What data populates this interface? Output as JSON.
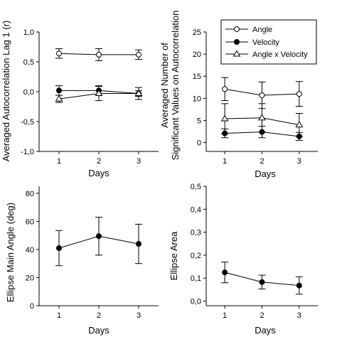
{
  "chart_data": [
    {
      "id": "autocorr",
      "type": "line",
      "xlabel": "Days",
      "ylabel": "Averaged Autocorrelation Lag 1 (r)",
      "x": [
        1,
        2,
        3
      ],
      "xticks": [
        "1",
        "2",
        "3"
      ],
      "xlim": [
        0.5,
        3.5
      ],
      "ylim": [
        -1.0,
        1.0
      ],
      "yticks": [
        -1.0,
        -0.5,
        0.0,
        0.5,
        1.0
      ],
      "ytick_labels": [
        "-1,0",
        "-0,5",
        "0,0",
        "0,5",
        "1,0"
      ],
      "series": [
        {
          "name": "Angle",
          "marker": "open-circle",
          "values": [
            0.64,
            0.62,
            0.62
          ],
          "err": [
            0.08,
            0.1,
            0.08
          ]
        },
        {
          "name": "Velocity",
          "marker": "filled-circle",
          "values": [
            0.02,
            0.02,
            -0.03
          ],
          "err": [
            0.08,
            0.08,
            0.05
          ]
        },
        {
          "name": "Angle x Velocity",
          "marker": "open-triangle",
          "values": [
            -0.12,
            -0.03,
            -0.03
          ],
          "err": [
            0.06,
            0.12,
            0.1
          ]
        }
      ]
    },
    {
      "id": "significant",
      "type": "line",
      "xlabel": "Days",
      "ylabel_lines": [
        "Averaged Number of",
        "Significant Values on Autocorrelation"
      ],
      "x": [
        1,
        2,
        3
      ],
      "xticks": [
        "1",
        "2",
        "3"
      ],
      "xlim": [
        0.5,
        3.5
      ],
      "ylim": [
        -2,
        25
      ],
      "yticks": [
        0,
        5,
        10,
        15,
        20,
        25
      ],
      "ytick_labels": [
        "0",
        "5",
        "10",
        "15",
        "20",
        "25"
      ],
      "legend": {
        "placement": "top-right",
        "entries": [
          "Angle",
          "Velocity",
          "Angle x Velocity"
        ]
      },
      "series": [
        {
          "name": "Angle",
          "marker": "open-circle",
          "values": [
            12.1,
            10.7,
            11.0
          ],
          "err": [
            2.6,
            3.0,
            2.8
          ]
        },
        {
          "name": "Velocity",
          "marker": "filled-circle",
          "values": [
            2.1,
            2.4,
            1.4
          ],
          "err": [
            1.0,
            1.3,
            0.9
          ]
        },
        {
          "name": "Angle x Velocity",
          "marker": "open-triangle",
          "values": [
            5.4,
            5.6,
            4.0
          ],
          "err": [
            3.4,
            3.2,
            2.6
          ]
        }
      ]
    },
    {
      "id": "angle",
      "type": "line",
      "xlabel": "Days",
      "ylabel": "Ellipse Main Angle (deg)",
      "x": [
        1,
        2,
        3
      ],
      "xticks": [
        "1",
        "2",
        "3"
      ],
      "xlim": [
        0.5,
        3.5
      ],
      "ylim": [
        0,
        85
      ],
      "yticks": [
        0,
        20,
        40,
        60,
        80
      ],
      "ytick_labels": [
        "0",
        "20",
        "40",
        "60",
        "80"
      ],
      "series": [
        {
          "marker": "filled-circle",
          "values": [
            41.0,
            49.5,
            44.0
          ],
          "err": [
            12.5,
            13.5,
            14.0
          ]
        }
      ]
    },
    {
      "id": "area",
      "type": "line",
      "xlabel": "Days",
      "ylabel": "Ellipse Area",
      "x": [
        1,
        2,
        3
      ],
      "xticks": [
        "1",
        "2",
        "3"
      ],
      "xlim": [
        0.5,
        3.5
      ],
      "ylim": [
        -0.02,
        0.5
      ],
      "yticks": [
        0.0,
        0.1,
        0.2,
        0.3,
        0.4,
        0.5
      ],
      "ytick_labels": [
        "0,0",
        "0,1",
        "0,2",
        "0,3",
        "0,4",
        "0,5"
      ],
      "series": [
        {
          "marker": "filled-circle",
          "values": [
            0.125,
            0.083,
            0.068
          ],
          "err": [
            0.045,
            0.03,
            0.038
          ]
        }
      ]
    }
  ]
}
